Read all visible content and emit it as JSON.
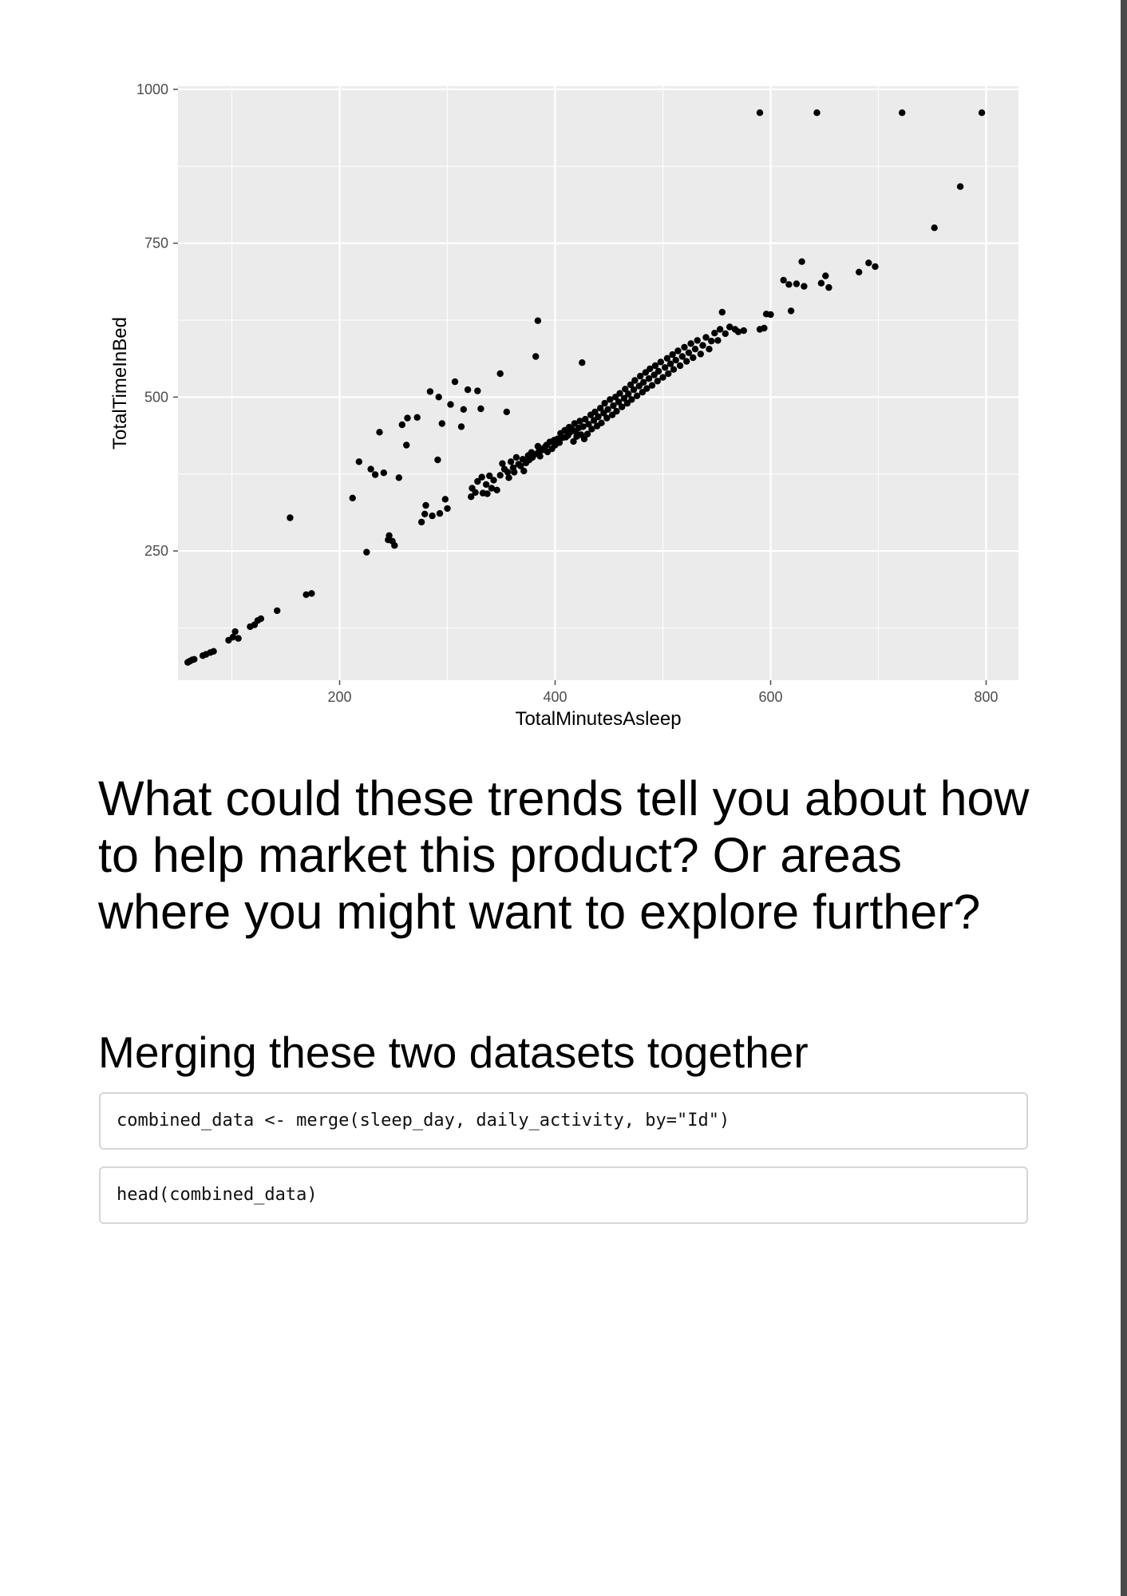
{
  "chart_data": {
    "type": "scatter",
    "xlabel": "TotalMinutesAsleep",
    "ylabel": "TotalTimeInBed",
    "xlim": [
      50,
      830
    ],
    "ylim": [
      40,
      1005
    ],
    "x_ticks": [
      200,
      400,
      600,
      800
    ],
    "y_ticks": [
      250,
      500,
      750,
      1000
    ],
    "grid": true,
    "background_color": "#ebebeb",
    "point_color": "#000000",
    "points": [
      [
        59,
        69
      ],
      [
        61,
        71
      ],
      [
        63,
        73
      ],
      [
        65,
        74
      ],
      [
        73,
        80
      ],
      [
        76,
        82
      ],
      [
        80,
        85
      ],
      [
        83,
        87
      ],
      [
        97,
        105
      ],
      [
        101,
        110
      ],
      [
        103,
        119
      ],
      [
        106,
        108
      ],
      [
        117,
        127
      ],
      [
        121,
        130
      ],
      [
        124,
        137
      ],
      [
        127,
        140
      ],
      [
        142,
        153
      ],
      [
        169,
        179
      ],
      [
        174,
        181
      ],
      [
        154,
        304
      ],
      [
        212,
        336
      ],
      [
        218,
        395
      ],
      [
        225,
        248
      ],
      [
        229,
        383
      ],
      [
        233,
        374
      ],
      [
        237,
        443
      ],
      [
        241,
        377
      ],
      [
        245,
        268
      ],
      [
        246,
        275
      ],
      [
        249,
        266
      ],
      [
        251,
        259
      ],
      [
        255,
        369
      ],
      [
        258,
        455
      ],
      [
        262,
        422
      ],
      [
        263,
        466
      ],
      [
        272,
        467
      ],
      [
        276,
        297
      ],
      [
        279,
        310
      ],
      [
        280,
        324
      ],
      [
        284,
        509
      ],
      [
        286,
        307
      ],
      [
        291,
        398
      ],
      [
        292,
        500
      ],
      [
        293,
        311
      ],
      [
        295,
        457
      ],
      [
        298,
        334
      ],
      [
        300,
        319
      ],
      [
        303,
        488
      ],
      [
        307,
        525
      ],
      [
        313,
        452
      ],
      [
        315,
        480
      ],
      [
        319,
        512
      ],
      [
        322,
        338
      ],
      [
        323,
        352
      ],
      [
        326,
        345
      ],
      [
        328,
        510
      ],
      [
        328,
        363
      ],
      [
        331,
        481
      ],
      [
        332,
        370
      ],
      [
        333,
        344
      ],
      [
        336,
        358
      ],
      [
        337,
        343
      ],
      [
        339,
        372
      ],
      [
        341,
        352
      ],
      [
        343,
        365
      ],
      [
        346,
        349
      ],
      [
        349,
        373
      ],
      [
        349,
        538
      ],
      [
        351,
        392
      ],
      [
        353,
        383
      ],
      [
        355,
        476
      ],
      [
        356,
        378
      ],
      [
        357,
        369
      ],
      [
        359,
        395
      ],
      [
        361,
        385
      ],
      [
        362,
        378
      ],
      [
        364,
        402
      ],
      [
        366,
        391
      ],
      [
        368,
        388
      ],
      [
        370,
        399
      ],
      [
        371,
        380
      ],
      [
        373,
        393
      ],
      [
        375,
        405
      ],
      [
        376,
        398
      ],
      [
        378,
        410
      ],
      [
        379,
        402
      ],
      [
        381,
        407
      ],
      [
        382,
        566
      ],
      [
        384,
        624
      ],
      [
        384,
        420
      ],
      [
        385,
        412
      ],
      [
        386,
        404
      ],
      [
        388,
        414
      ],
      [
        390,
        418
      ],
      [
        392,
        422
      ],
      [
        393,
        411
      ],
      [
        395,
        427
      ],
      [
        397,
        416
      ],
      [
        399,
        430
      ],
      [
        400,
        422
      ],
      [
        402,
        432
      ],
      [
        404,
        426
      ],
      [
        405,
        441
      ],
      [
        407,
        434
      ],
      [
        409,
        446
      ],
      [
        410,
        435
      ],
      [
        412,
        438
      ],
      [
        413,
        451
      ],
      [
        414,
        443
      ],
      [
        416,
        447
      ],
      [
        417,
        428
      ],
      [
        418,
        457
      ],
      [
        419,
        444
      ],
      [
        420,
        436
      ],
      [
        422,
        450
      ],
      [
        423,
        461
      ],
      [
        424,
        439
      ],
      [
        425,
        556
      ],
      [
        426,
        452
      ],
      [
        427,
        432
      ],
      [
        428,
        464
      ],
      [
        430,
        440
      ],
      [
        431,
        456
      ],
      [
        433,
        471
      ],
      [
        434,
        448
      ],
      [
        436,
        462
      ],
      [
        437,
        476
      ],
      [
        439,
        453
      ],
      [
        440,
        468
      ],
      [
        442,
        482
      ],
      [
        443,
        458
      ],
      [
        445,
        474
      ],
      [
        446,
        490
      ],
      [
        448,
        466
      ],
      [
        449,
        480
      ],
      [
        451,
        496
      ],
      [
        453,
        471
      ],
      [
        454,
        486
      ],
      [
        456,
        500
      ],
      [
        457,
        477
      ],
      [
        459,
        492
      ],
      [
        460,
        506
      ],
      [
        462,
        484
      ],
      [
        464,
        498
      ],
      [
        465,
        513
      ],
      [
        467,
        490
      ],
      [
        468,
        505
      ],
      [
        470,
        520
      ],
      [
        471,
        496
      ],
      [
        473,
        512
      ],
      [
        474,
        527
      ],
      [
        476,
        502
      ],
      [
        478,
        518
      ],
      [
        479,
        534
      ],
      [
        481,
        508
      ],
      [
        482,
        524
      ],
      [
        484,
        540
      ],
      [
        485,
        514
      ],
      [
        487,
        530
      ],
      [
        488,
        546
      ],
      [
        490,
        519
      ],
      [
        492,
        536
      ],
      [
        493,
        551
      ],
      [
        495,
        526
      ],
      [
        496,
        542
      ],
      [
        498,
        557
      ],
      [
        500,
        532
      ],
      [
        502,
        548
      ],
      [
        504,
        563
      ],
      [
        505,
        538
      ],
      [
        507,
        554
      ],
      [
        509,
        569
      ],
      [
        510,
        545
      ],
      [
        512,
        560
      ],
      [
        514,
        575
      ],
      [
        516,
        551
      ],
      [
        518,
        566
      ],
      [
        520,
        581
      ],
      [
        522,
        558
      ],
      [
        524,
        572
      ],
      [
        526,
        587
      ],
      [
        528,
        564
      ],
      [
        530,
        578
      ],
      [
        532,
        592
      ],
      [
        535,
        570
      ],
      [
        537,
        584
      ],
      [
        540,
        597
      ],
      [
        543,
        578
      ],
      [
        545,
        591
      ],
      [
        548,
        604
      ],
      [
        551,
        592
      ],
      [
        553,
        610
      ],
      [
        555,
        638
      ],
      [
        558,
        603
      ],
      [
        562,
        614
      ],
      [
        567,
        610
      ],
      [
        570,
        606
      ],
      [
        575,
        608
      ],
      [
        590,
        610
      ],
      [
        594,
        612
      ],
      [
        596,
        635
      ],
      [
        600,
        634
      ],
      [
        612,
        690
      ],
      [
        617,
        683
      ],
      [
        619,
        640
      ],
      [
        624,
        684
      ],
      [
        629,
        720
      ],
      [
        631,
        680
      ],
      [
        647,
        685
      ],
      [
        651,
        697
      ],
      [
        654,
        678
      ],
      [
        682,
        703
      ],
      [
        691,
        718
      ],
      [
        697,
        712
      ],
      [
        590,
        962
      ],
      [
        643,
        962
      ],
      [
        722,
        962
      ],
      [
        796,
        962
      ],
      [
        776,
        842
      ],
      [
        752,
        775
      ]
    ]
  },
  "content": {
    "question_heading": "What could these trends tell you about how to help market this product? Or areas where you might want to explore further?",
    "section_heading": "Merging these two datasets together",
    "code_blocks": [
      "combined_data <- merge(sleep_day, daily_activity, by=\"Id\")",
      "head(combined_data)"
    ]
  }
}
